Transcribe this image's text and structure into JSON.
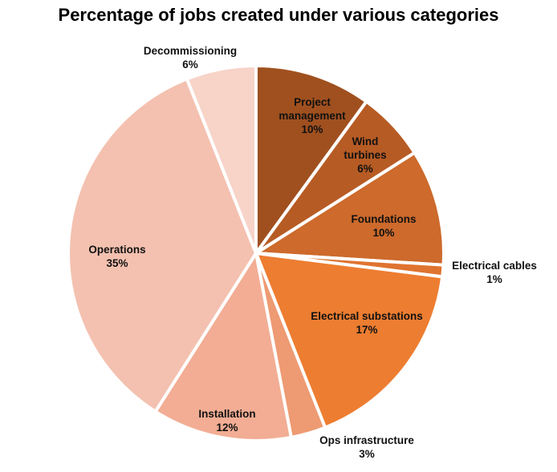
{
  "chart_data": {
    "type": "pie",
    "title": "Percentage of jobs created under various categories",
    "slices": [
      {
        "lines": [
          "Project",
          "management"
        ],
        "percent_label": "10%",
        "value": 10,
        "color": "#a0501f"
      },
      {
        "lines": [
          "Wind",
          "turbines"
        ],
        "percent_label": "6%",
        "value": 6,
        "color": "#b75b24"
      },
      {
        "lines": [
          "Foundations"
        ],
        "percent_label": "10%",
        "value": 10,
        "color": "#cd6a2c"
      },
      {
        "lines": [
          "Electrical cables"
        ],
        "percent_label": "1%",
        "value": 1,
        "color": "#df7430"
      },
      {
        "lines": [
          "Electrical substations"
        ],
        "percent_label": "17%",
        "value": 17,
        "color": "#ed7d31"
      },
      {
        "lines": [
          "Ops infrastructure"
        ],
        "percent_label": "3%",
        "value": 3,
        "color": "#ee9a72"
      },
      {
        "lines": [
          "Installation"
        ],
        "percent_label": "12%",
        "value": 12,
        "color": "#f2ad94"
      },
      {
        "lines": [
          "Operations"
        ],
        "percent_label": "35%",
        "value": 35,
        "color": "#f4c1b0"
      },
      {
        "lines": [
          "Decommissioning"
        ],
        "percent_label": "6%",
        "value": 6,
        "color": "#f7d3c8"
      }
    ],
    "legend": "none"
  }
}
